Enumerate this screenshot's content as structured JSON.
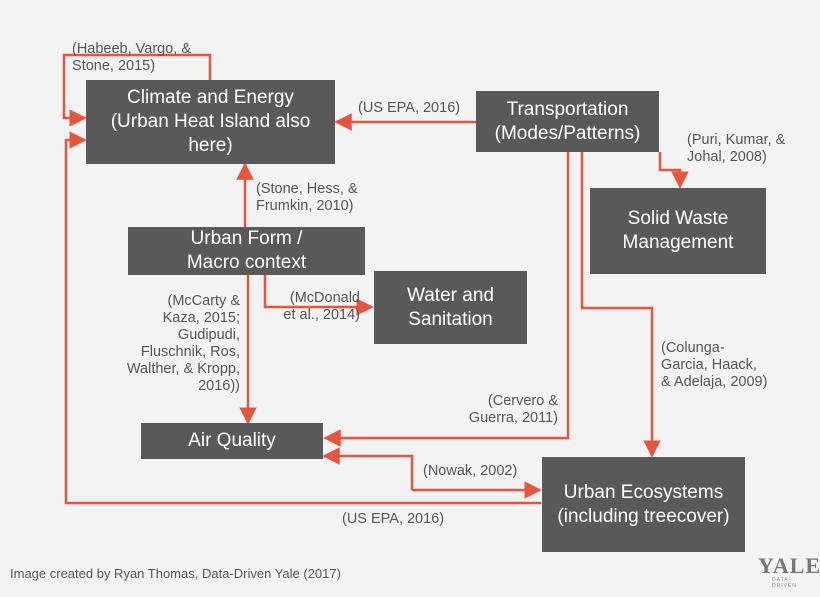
{
  "nodes": {
    "climate": "Climate and Energy\n(Urban Heat Island also\nhere)",
    "transport": "Transportation\n(Modes/Patterns)",
    "solid_waste": "Solid Waste\nManagement",
    "urban_form": "Urban Form /\nMacro context",
    "water": "Water and\nSanitation",
    "air": "Air Quality",
    "ecosystems": "Urban Ecosystems\n(including treecover)"
  },
  "citations": {
    "habeeb": "(Habeeb, Vargo, &\nStone, 2015)",
    "epa_top": "(US EPA, 2016)",
    "puri": "(Puri, Kumar, &\nJohal, 2008)",
    "stone": "(Stone, Hess, &\nFrumkin, 2010)",
    "mccarty": "(McCarty &\nKaza, 2015;\nGudipudi,\nFluschnik, Ros,\nWalther, & Kropp,\n2016))",
    "mcdonald": "(McDonald\net al., 2014)",
    "colunga": "(Colunga-\nGarcia, Haack,\n& Adelaja, 2009)",
    "cervero": "(Cervero &\nGuerra, 2011)",
    "nowak": "(Nowak, 2002)",
    "epa_bottom": "(US EPA, 2016)"
  },
  "credit": "Image created by Ryan Thomas, Data-Driven Yale (2017)",
  "logo": {
    "text": "YALE",
    "subtext": "DATA-DRIVEN"
  },
  "colors": {
    "node_fill": "#595959",
    "arrow": "#e8553e",
    "background": "#f3f3f3",
    "text_dark": "#555555"
  }
}
